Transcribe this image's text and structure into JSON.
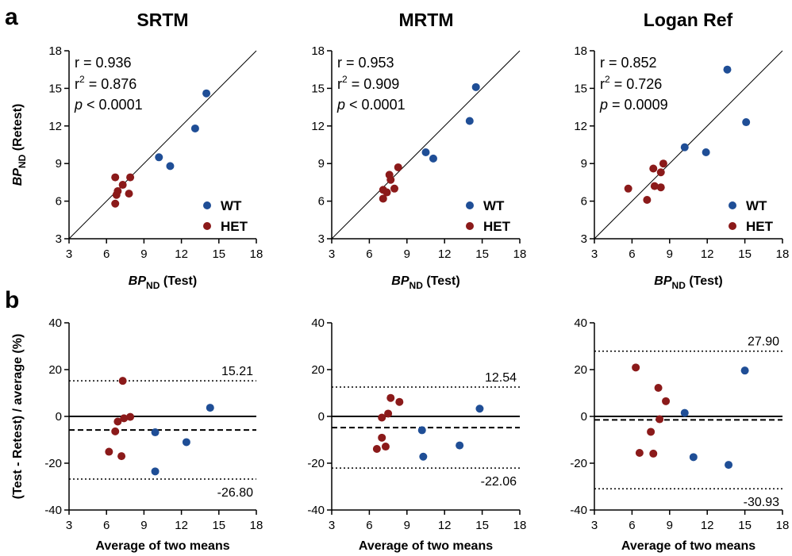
{
  "panel_labels": {
    "a": "a",
    "b": "b"
  },
  "colors": {
    "WT": "#1f4e96",
    "HET": "#8b1a1a",
    "axis": "#000000"
  },
  "columns": [
    {
      "title": "SRTM"
    },
    {
      "title": "MRTM"
    },
    {
      "title": "Logan Ref"
    }
  ],
  "scatter_axes": {
    "x_label_main": "BP",
    "x_label_sub": "ND",
    "x_label_rest": " (Test)",
    "y_label_main": "BP",
    "y_label_sub": "ND",
    "y_label_rest": " (Retest)"
  },
  "ba_axes": {
    "x_label": "Average of two means",
    "y_label": "(Test - Retest) / average (%)"
  },
  "legend": {
    "wt": "WT",
    "het": "HET"
  },
  "chart_data": [
    {
      "type": "scatter",
      "panel": "a",
      "column": "SRTM",
      "xlabel": "BPND (Test)",
      "ylabel": "BPND (Retest)",
      "xlim": [
        3,
        18
      ],
      "ylim": [
        3,
        18
      ],
      "xticks": [
        "3",
        "6",
        "9",
        "12",
        "15",
        "18"
      ],
      "yticks": [
        "3",
        "6",
        "9",
        "12",
        "15",
        "18"
      ],
      "identity_line": true,
      "stats": {
        "r": "r = 0.936",
        "r2_pre": "r",
        "r2_sup": "2",
        "r2_post": " = 0.876",
        "p_italic": "p",
        "p_post": " < 0.0001"
      },
      "series": [
        {
          "name": "WT",
          "points": [
            [
              10.2,
              9.5
            ],
            [
              11.1,
              8.8
            ],
            [
              13.1,
              11.8
            ],
            [
              14.0,
              14.6
            ]
          ]
        },
        {
          "name": "HET",
          "points": [
            [
              6.7,
              7.9
            ],
            [
              6.8,
              6.5
            ],
            [
              6.9,
              6.8
            ],
            [
              7.3,
              7.3
            ],
            [
              7.8,
              6.6
            ],
            [
              7.9,
              7.9
            ],
            [
              6.7,
              5.8
            ]
          ]
        }
      ]
    },
    {
      "type": "scatter",
      "panel": "a",
      "column": "MRTM",
      "xlabel": "BPND (Test)",
      "ylabel": "BPND (Retest)",
      "xlim": [
        3,
        18
      ],
      "ylim": [
        3,
        18
      ],
      "xticks": [
        "3",
        "6",
        "9",
        "12",
        "15",
        "18"
      ],
      "yticks": [
        "3",
        "6",
        "9",
        "12",
        "15",
        "18"
      ],
      "identity_line": true,
      "stats": {
        "r": "r = 0.953",
        "r2_pre": "r",
        "r2_sup": "2",
        "r2_post": " = 0.909",
        "p_italic": "p",
        "p_post": " < 0.0001"
      },
      "series": [
        {
          "name": "WT",
          "points": [
            [
              10.5,
              9.9
            ],
            [
              11.1,
              9.4
            ],
            [
              14.0,
              12.4
            ],
            [
              14.5,
              15.1
            ]
          ]
        },
        {
          "name": "HET",
          "points": [
            [
              7.1,
              6.9
            ],
            [
              7.1,
              6.2
            ],
            [
              7.4,
              6.7
            ],
            [
              7.6,
              8.1
            ],
            [
              7.7,
              7.7
            ],
            [
              8.0,
              7.0
            ],
            [
              8.3,
              8.7
            ]
          ]
        }
      ]
    },
    {
      "type": "scatter",
      "panel": "a",
      "column": "Logan Ref",
      "xlabel": "BPND (Test)",
      "ylabel": "BPND (Retest)",
      "xlim": [
        3,
        18
      ],
      "ylim": [
        3,
        18
      ],
      "xticks": [
        "3",
        "6",
        "9",
        "12",
        "15",
        "18"
      ],
      "yticks": [
        "3",
        "6",
        "9",
        "12",
        "15",
        "18"
      ],
      "identity_line": true,
      "stats": {
        "r": "r = 0.852",
        "r2_pre": "r",
        "r2_sup": "2",
        "r2_post": " = 0.726",
        "p_italic": "p",
        "p_post": " = 0.0009"
      },
      "series": [
        {
          "name": "WT",
          "points": [
            [
              10.2,
              10.3
            ],
            [
              11.9,
              9.9
            ],
            [
              13.6,
              16.5
            ],
            [
              15.1,
              12.3
            ]
          ]
        },
        {
          "name": "HET",
          "points": [
            [
              5.7,
              7.0
            ],
            [
              7.2,
              6.1
            ],
            [
              7.7,
              8.6
            ],
            [
              7.8,
              7.2
            ],
            [
              8.3,
              7.1
            ],
            [
              8.3,
              8.3
            ],
            [
              8.5,
              9.0
            ]
          ]
        }
      ]
    },
    {
      "type": "scatter",
      "panel": "b",
      "column": "SRTM",
      "xlabel": "Average of two means",
      "ylabel": "(Test - Retest) / average (%)",
      "xlim": [
        3,
        18
      ],
      "ylim": [
        -40,
        40
      ],
      "xticks": [
        "3",
        "6",
        "9",
        "12",
        "15",
        "18"
      ],
      "yticks": [
        "-40",
        "-20",
        "0",
        "20",
        "40"
      ],
      "zero_line": 0,
      "mean_line": -5.8,
      "upper_loa": {
        "value": 15.21,
        "label": "15.21"
      },
      "lower_loa": {
        "value": -26.8,
        "label": "-26.80"
      },
      "series": [
        {
          "name": "WT",
          "points": [
            [
              9.9,
              -6.8
            ],
            [
              9.9,
              -23.5
            ],
            [
              12.4,
              -11.0
            ],
            [
              14.3,
              3.7
            ]
          ]
        },
        {
          "name": "HET",
          "points": [
            [
              6.2,
              -15.1
            ],
            [
              6.7,
              -6.4
            ],
            [
              6.9,
              -2.2
            ],
            [
              7.2,
              -17.0
            ],
            [
              7.3,
              15.2
            ],
            [
              7.4,
              -0.8
            ],
            [
              7.9,
              -0.2
            ]
          ]
        }
      ]
    },
    {
      "type": "scatter",
      "panel": "b",
      "column": "MRTM",
      "xlabel": "Average of two means",
      "ylabel": "(Test - Retest) / average (%)",
      "xlim": [
        3,
        18
      ],
      "ylim": [
        -40,
        40
      ],
      "xticks": [
        "3",
        "6",
        "9",
        "12",
        "15",
        "18"
      ],
      "yticks": [
        "-40",
        "-20",
        "0",
        "20",
        "40"
      ],
      "zero_line": 0,
      "mean_line": -4.8,
      "upper_loa": {
        "value": 12.54,
        "label": "12.54"
      },
      "lower_loa": {
        "value": -22.06,
        "label": "-22.06"
      },
      "series": [
        {
          "name": "WT",
          "points": [
            [
              10.2,
              -5.9
            ],
            [
              10.3,
              -17.2
            ],
            [
              13.2,
              -12.4
            ],
            [
              14.8,
              3.3
            ]
          ]
        },
        {
          "name": "HET",
          "points": [
            [
              6.6,
              -13.9
            ],
            [
              7.0,
              -9.1
            ],
            [
              7.0,
              -0.5
            ],
            [
              7.3,
              -12.9
            ],
            [
              7.5,
              1.2
            ],
            [
              7.7,
              7.9
            ],
            [
              8.4,
              6.2
            ]
          ]
        }
      ]
    },
    {
      "type": "scatter",
      "panel": "b",
      "column": "Logan Ref",
      "xlabel": "Average of two means",
      "ylabel": "(Test - Retest) / average (%)",
      "xlim": [
        3,
        18
      ],
      "ylim": [
        -40,
        40
      ],
      "xticks": [
        "3",
        "6",
        "9",
        "12",
        "15",
        "18"
      ],
      "yticks": [
        "-40",
        "-20",
        "0",
        "20",
        "40"
      ],
      "zero_line": 0,
      "mean_line": -1.5,
      "upper_loa": {
        "value": 27.9,
        "label": "27.90"
      },
      "lower_loa": {
        "value": -30.93,
        "label": "-30.93"
      },
      "series": [
        {
          "name": "WT",
          "points": [
            [
              10.2,
              1.5
            ],
            [
              10.9,
              -17.4
            ],
            [
              13.7,
              -20.7
            ],
            [
              15.0,
              19.6
            ]
          ]
        },
        {
          "name": "HET",
          "points": [
            [
              6.3,
              20.9
            ],
            [
              6.6,
              -15.6
            ],
            [
              7.5,
              -6.6
            ],
            [
              7.7,
              -15.9
            ],
            [
              8.1,
              12.2
            ],
            [
              8.2,
              -1.2
            ],
            [
              8.7,
              6.5
            ]
          ]
        }
      ]
    }
  ]
}
